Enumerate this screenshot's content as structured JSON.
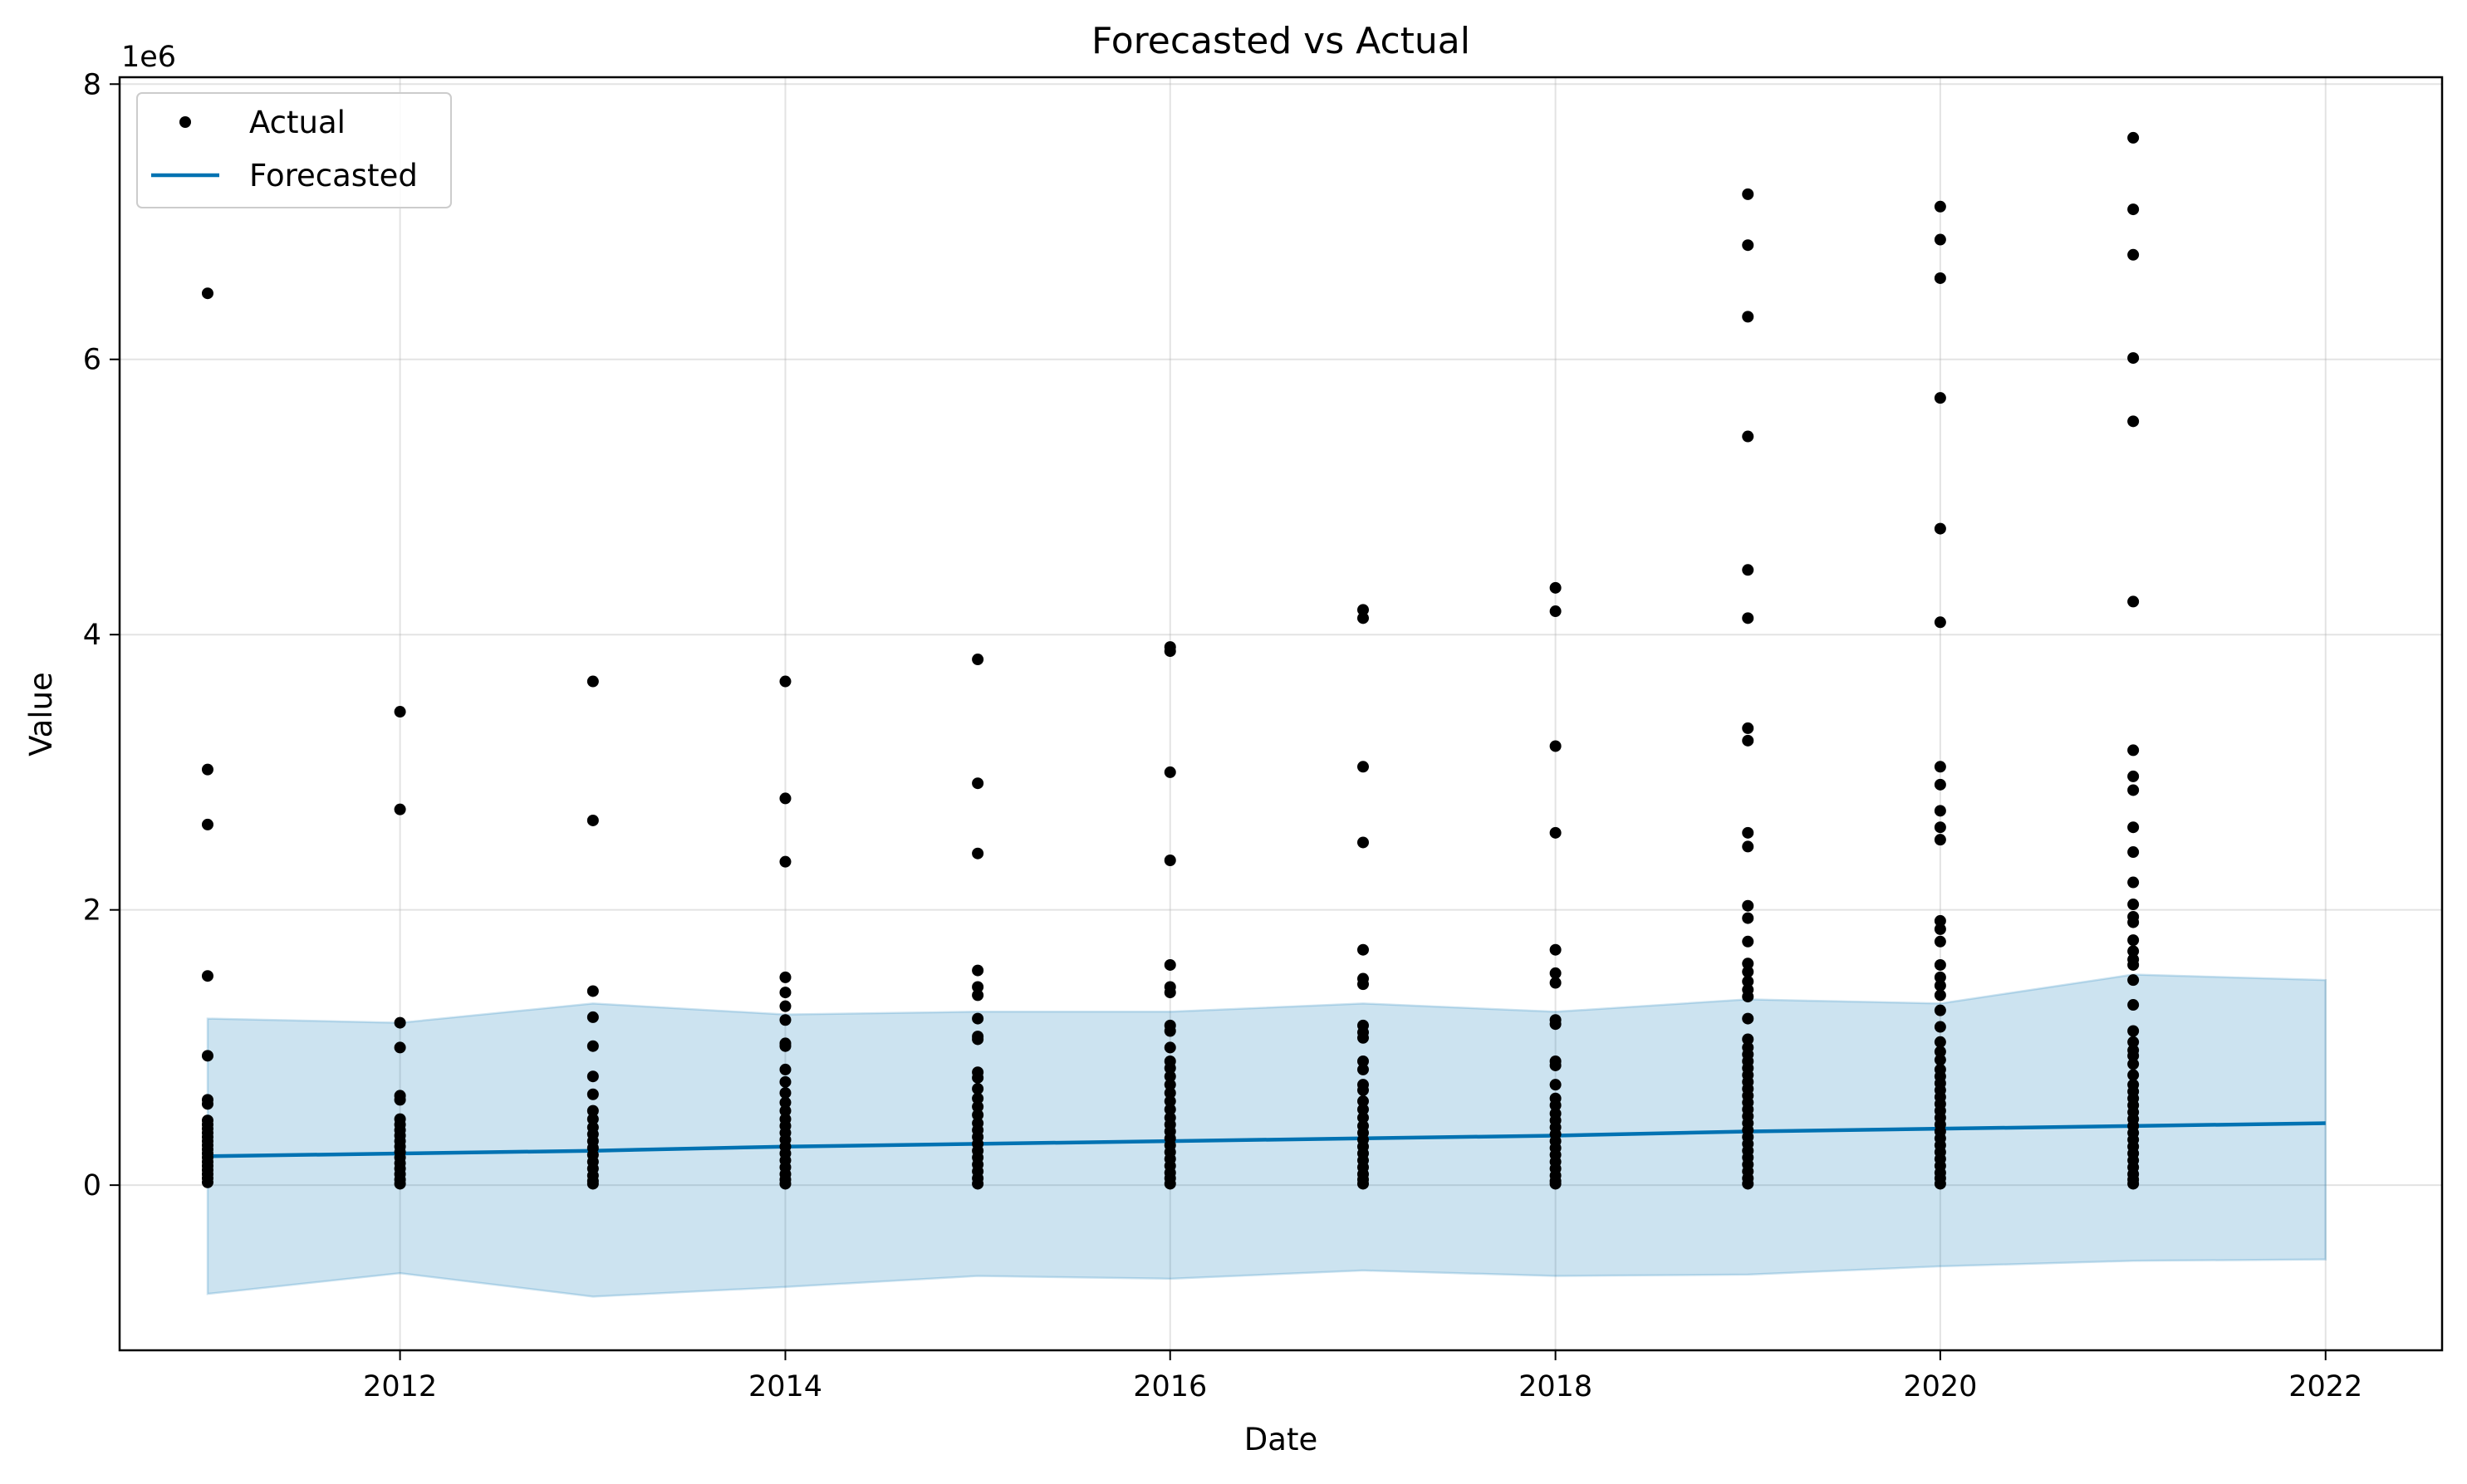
{
  "chart_data": {
    "type": "scatter",
    "title": "Forecasted vs Actual",
    "xlabel": "Date",
    "ylabel": "Value",
    "y_offset_label": "1e6",
    "xlim": [
      "2010-07-18",
      "2022-08-10"
    ],
    "ylim": [
      -1.2,
      8.05
    ],
    "y_scale_multiplier": 1000000,
    "x_ticks": [
      {
        "date": "2012-01-01",
        "label": "2012"
      },
      {
        "date": "2014-01-01",
        "label": "2014"
      },
      {
        "date": "2016-01-01",
        "label": "2016"
      },
      {
        "date": "2018-01-01",
        "label": "2018"
      },
      {
        "date": "2020-01-01",
        "label": "2020"
      },
      {
        "date": "2022-01-01",
        "label": "2022"
      }
    ],
    "y_ticks": [
      {
        "value": 0,
        "label": "0"
      },
      {
        "value": 2,
        "label": "2"
      },
      {
        "value": 4,
        "label": "4"
      },
      {
        "value": 6,
        "label": "6"
      },
      {
        "value": 8,
        "label": "8"
      }
    ],
    "grid": true,
    "legend": {
      "placement": "top-left",
      "entries": [
        {
          "label": "Actual",
          "marker": "dot",
          "color": "#000000"
        },
        {
          "label": "Forecasted",
          "marker": "line",
          "color": "#0072B2"
        }
      ]
    },
    "colors": {
      "actual": "#000000",
      "forecast": "#0072B2",
      "interval": "#0072B2"
    },
    "series": [
      {
        "name": "Actual",
        "kind": "scatter",
        "points": [
          {
            "date": "2011-01-01",
            "values": [
              6.48,
              3.02,
              2.62,
              1.52,
              0.94,
              0.62,
              0.59,
              0.47,
              0.44,
              0.41,
              0.38,
              0.35,
              0.32,
              0.29,
              0.26,
              0.23,
              0.2,
              0.17,
              0.14,
              0.11,
              0.08,
              0.05,
              0.02
            ]
          },
          {
            "date": "2012-01-01",
            "values": [
              3.44,
              2.73,
              1.18,
              1.0,
              0.65,
              0.62,
              0.48,
              0.44,
              0.4,
              0.36,
              0.32,
              0.28,
              0.24,
              0.2,
              0.16,
              0.12,
              0.08,
              0.04,
              0.01
            ]
          },
          {
            "date": "2013-01-01",
            "values": [
              3.66,
              2.65,
              1.41,
              1.22,
              1.01,
              0.79,
              0.66,
              0.54,
              0.48,
              0.42,
              0.37,
              0.32,
              0.27,
              0.22,
              0.17,
              0.12,
              0.07,
              0.03,
              0.01
            ]
          },
          {
            "date": "2014-01-01",
            "values": [
              3.66,
              2.81,
              2.35,
              1.51,
              1.4,
              1.3,
              1.2,
              1.03,
              1.01,
              0.84,
              0.75,
              0.67,
              0.6,
              0.54,
              0.48,
              0.43,
              0.38,
              0.33,
              0.28,
              0.23,
              0.18,
              0.13,
              0.08,
              0.04,
              0.01
            ]
          },
          {
            "date": "2015-01-01",
            "values": [
              3.82,
              2.92,
              2.41,
              1.56,
              1.44,
              1.38,
              1.21,
              1.08,
              1.06,
              0.82,
              0.78,
              0.7,
              0.63,
              0.57,
              0.51,
              0.45,
              0.4,
              0.35,
              0.3,
              0.25,
              0.2,
              0.15,
              0.1,
              0.05,
              0.01
            ]
          },
          {
            "date": "2016-01-01",
            "values": [
              3.91,
              3.88,
              3.0,
              2.36,
              1.6,
              1.44,
              1.4,
              1.16,
              1.12,
              1.0,
              0.9,
              0.85,
              0.79,
              0.73,
              0.67,
              0.61,
              0.55,
              0.49,
              0.44,
              0.39,
              0.34,
              0.29,
              0.24,
              0.19,
              0.14,
              0.09,
              0.05,
              0.01
            ]
          },
          {
            "date": "2017-01-01",
            "values": [
              4.18,
              4.12,
              3.04,
              2.49,
              1.71,
              1.5,
              1.46,
              1.16,
              1.11,
              1.07,
              0.9,
              0.84,
              0.73,
              0.69,
              0.61,
              0.55,
              0.49,
              0.43,
              0.38,
              0.33,
              0.28,
              0.23,
              0.18,
              0.13,
              0.08,
              0.04,
              0.01
            ]
          },
          {
            "date": "2018-01-01",
            "values": [
              4.34,
              4.17,
              3.19,
              2.56,
              1.71,
              1.54,
              1.47,
              1.2,
              1.17,
              0.9,
              0.87,
              0.73,
              0.63,
              0.58,
              0.52,
              0.47,
              0.42,
              0.37,
              0.32,
              0.27,
              0.22,
              0.17,
              0.12,
              0.07,
              0.03,
              0.01
            ]
          },
          {
            "date": "2019-01-01",
            "values": [
              7.2,
              6.83,
              6.31,
              5.44,
              4.47,
              4.12,
              3.32,
              3.23,
              2.56,
              2.46,
              2.03,
              1.94,
              1.77,
              1.61,
              1.55,
              1.48,
              1.42,
              1.37,
              1.21,
              1.06,
              1.0,
              0.95,
              0.9,
              0.85,
              0.8,
              0.75,
              0.7,
              0.65,
              0.6,
              0.55,
              0.5,
              0.45,
              0.4,
              0.35,
              0.3,
              0.25,
              0.2,
              0.15,
              0.1,
              0.05,
              0.01
            ]
          },
          {
            "date": "2020-01-01",
            "values": [
              7.11,
              6.87,
              6.59,
              5.72,
              4.77,
              4.09,
              3.04,
              2.91,
              2.72,
              2.6,
              2.51,
              1.92,
              1.86,
              1.77,
              1.6,
              1.51,
              1.45,
              1.38,
              1.27,
              1.15,
              1.04,
              0.97,
              0.91,
              0.84,
              0.79,
              0.74,
              0.69,
              0.64,
              0.59,
              0.54,
              0.49,
              0.44,
              0.39,
              0.34,
              0.29,
              0.24,
              0.19,
              0.14,
              0.09,
              0.05,
              0.01
            ]
          },
          {
            "date": "2021-01-01",
            "values": [
              7.61,
              7.09,
              6.76,
              6.01,
              5.55,
              4.24,
              3.16,
              2.97,
              2.87,
              2.6,
              2.42,
              2.2,
              2.04,
              1.95,
              1.91,
              1.78,
              1.7,
              1.64,
              1.6,
              1.49,
              1.31,
              1.12,
              1.04,
              0.98,
              0.94,
              0.88,
              0.8,
              0.73,
              0.68,
              0.63,
              0.58,
              0.53,
              0.48,
              0.43,
              0.38,
              0.33,
              0.28,
              0.23,
              0.18,
              0.13,
              0.08,
              0.04,
              0.01
            ]
          }
        ]
      },
      {
        "name": "Forecasted",
        "kind": "line",
        "points": [
          {
            "date": "2011-01-01",
            "yhat": 0.21,
            "lower": -0.79,
            "upper": 1.21
          },
          {
            "date": "2012-01-01",
            "yhat": 0.23,
            "lower": -0.64,
            "upper": 1.18
          },
          {
            "date": "2013-01-01",
            "yhat": 0.25,
            "lower": -0.81,
            "upper": 1.32
          },
          {
            "date": "2014-01-01",
            "yhat": 0.28,
            "lower": -0.74,
            "upper": 1.24
          },
          {
            "date": "2015-01-01",
            "yhat": 0.3,
            "lower": -0.66,
            "upper": 1.26
          },
          {
            "date": "2016-01-01",
            "yhat": 0.32,
            "lower": -0.68,
            "upper": 1.26
          },
          {
            "date": "2017-01-01",
            "yhat": 0.34,
            "lower": -0.62,
            "upper": 1.32
          },
          {
            "date": "2018-01-01",
            "yhat": 0.36,
            "lower": -0.66,
            "upper": 1.26
          },
          {
            "date": "2019-01-01",
            "yhat": 0.39,
            "lower": -0.65,
            "upper": 1.35
          },
          {
            "date": "2020-01-01",
            "yhat": 0.41,
            "lower": -0.59,
            "upper": 1.32
          },
          {
            "date": "2021-01-01",
            "yhat": 0.43,
            "lower": -0.55,
            "upper": 1.53
          },
          {
            "date": "2022-01-01",
            "yhat": 0.45,
            "lower": -0.54,
            "upper": 1.49
          }
        ]
      }
    ]
  }
}
